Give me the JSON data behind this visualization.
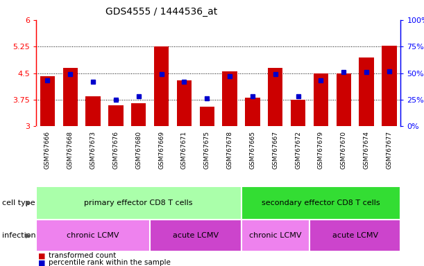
{
  "title": "GDS4555 / 1444536_at",
  "samples": [
    "GSM767666",
    "GSM767668",
    "GSM767673",
    "GSM767676",
    "GSM767680",
    "GSM767669",
    "GSM767671",
    "GSM767675",
    "GSM767678",
    "GSM767665",
    "GSM767667",
    "GSM767672",
    "GSM767679",
    "GSM767670",
    "GSM767674",
    "GSM767677"
  ],
  "red_values": [
    4.42,
    4.65,
    3.85,
    3.6,
    3.65,
    5.25,
    4.3,
    3.55,
    4.55,
    3.8,
    4.65,
    3.75,
    4.5,
    4.5,
    4.95,
    5.28
  ],
  "blue_percentile": [
    43,
    49,
    42,
    25,
    28,
    49,
    42,
    26,
    47,
    28,
    49,
    28,
    43,
    51,
    51,
    52
  ],
  "ylim_left": [
    3,
    6
  ],
  "ylim_right": [
    0,
    100
  ],
  "yticks_left": [
    3,
    3.75,
    4.5,
    5.25,
    6
  ],
  "yticks_right": [
    0,
    25,
    50,
    75,
    100
  ],
  "bar_color": "#cc0000",
  "marker_color": "#0000cc",
  "cell_type_groups": [
    {
      "label": "primary effector CD8 T cells",
      "start": 0,
      "end": 9,
      "color": "#aaffaa"
    },
    {
      "label": "secondary effector CD8 T cells",
      "start": 9,
      "end": 16,
      "color": "#33dd33"
    }
  ],
  "infection_groups": [
    {
      "label": "chronic LCMV",
      "start": 0,
      "end": 5,
      "color": "#ee82ee"
    },
    {
      "label": "acute LCMV",
      "start": 5,
      "end": 9,
      "color": "#dd44dd"
    },
    {
      "label": "chronic LCMV",
      "start": 9,
      "end": 12,
      "color": "#ee82ee"
    },
    {
      "label": "acute LCMV",
      "start": 12,
      "end": 16,
      "color": "#dd44dd"
    }
  ],
  "legend_red": "transformed count",
  "legend_blue": "percentile rank within the sample",
  "xlabel_cell_type": "cell type",
  "xlabel_infection": "infection",
  "bar_width": 0.65,
  "background_color": "#ffffff",
  "sample_area_color": "#cccccc",
  "n_samples": 16
}
